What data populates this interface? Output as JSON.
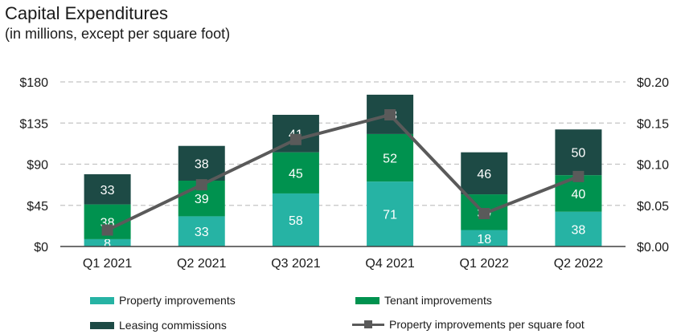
{
  "chart_data": {
    "type": "bar",
    "stacked": true,
    "title": "Capital Expenditures",
    "subtitle": "(in millions, except per square foot)",
    "categories": [
      "Q1 2021",
      "Q2 2021",
      "Q3 2021",
      "Q4 2021",
      "Q1 2022",
      "Q2 2022"
    ],
    "series": [
      {
        "name": "Property improvements",
        "values": [
          8,
          33,
          58,
          71,
          18,
          38
        ],
        "color": "#26b3a4"
      },
      {
        "name": "Tenant improvements",
        "values": [
          38,
          39,
          45,
          52,
          39,
          40
        ],
        "color": "#00924f"
      },
      {
        "name": "Leasing commissions",
        "values": [
          33,
          38,
          41,
          43,
          46,
          50
        ],
        "color": "#1d4a45"
      }
    ],
    "line_series": {
      "name": "Property improvements per square foot",
      "axis": "right",
      "values": [
        0.02,
        0.075,
        0.13,
        0.16,
        0.04,
        0.085
      ],
      "color": "#5a5a5a"
    },
    "y_left": {
      "ticks": [
        0,
        45,
        90,
        135,
        180
      ],
      "tick_labels": [
        "$0",
        "$45",
        "$90",
        "$135",
        "$180"
      ],
      "ylim": [
        0,
        180
      ]
    },
    "y_right": {
      "ticks": [
        0,
        0.05,
        0.1,
        0.15,
        0.2
      ],
      "tick_labels": [
        "$0.00",
        "$0.05",
        "$0.10",
        "$0.15",
        "$0.20"
      ],
      "ylim": [
        0,
        0.2
      ]
    },
    "grid": true,
    "legend_position": "bottom"
  }
}
